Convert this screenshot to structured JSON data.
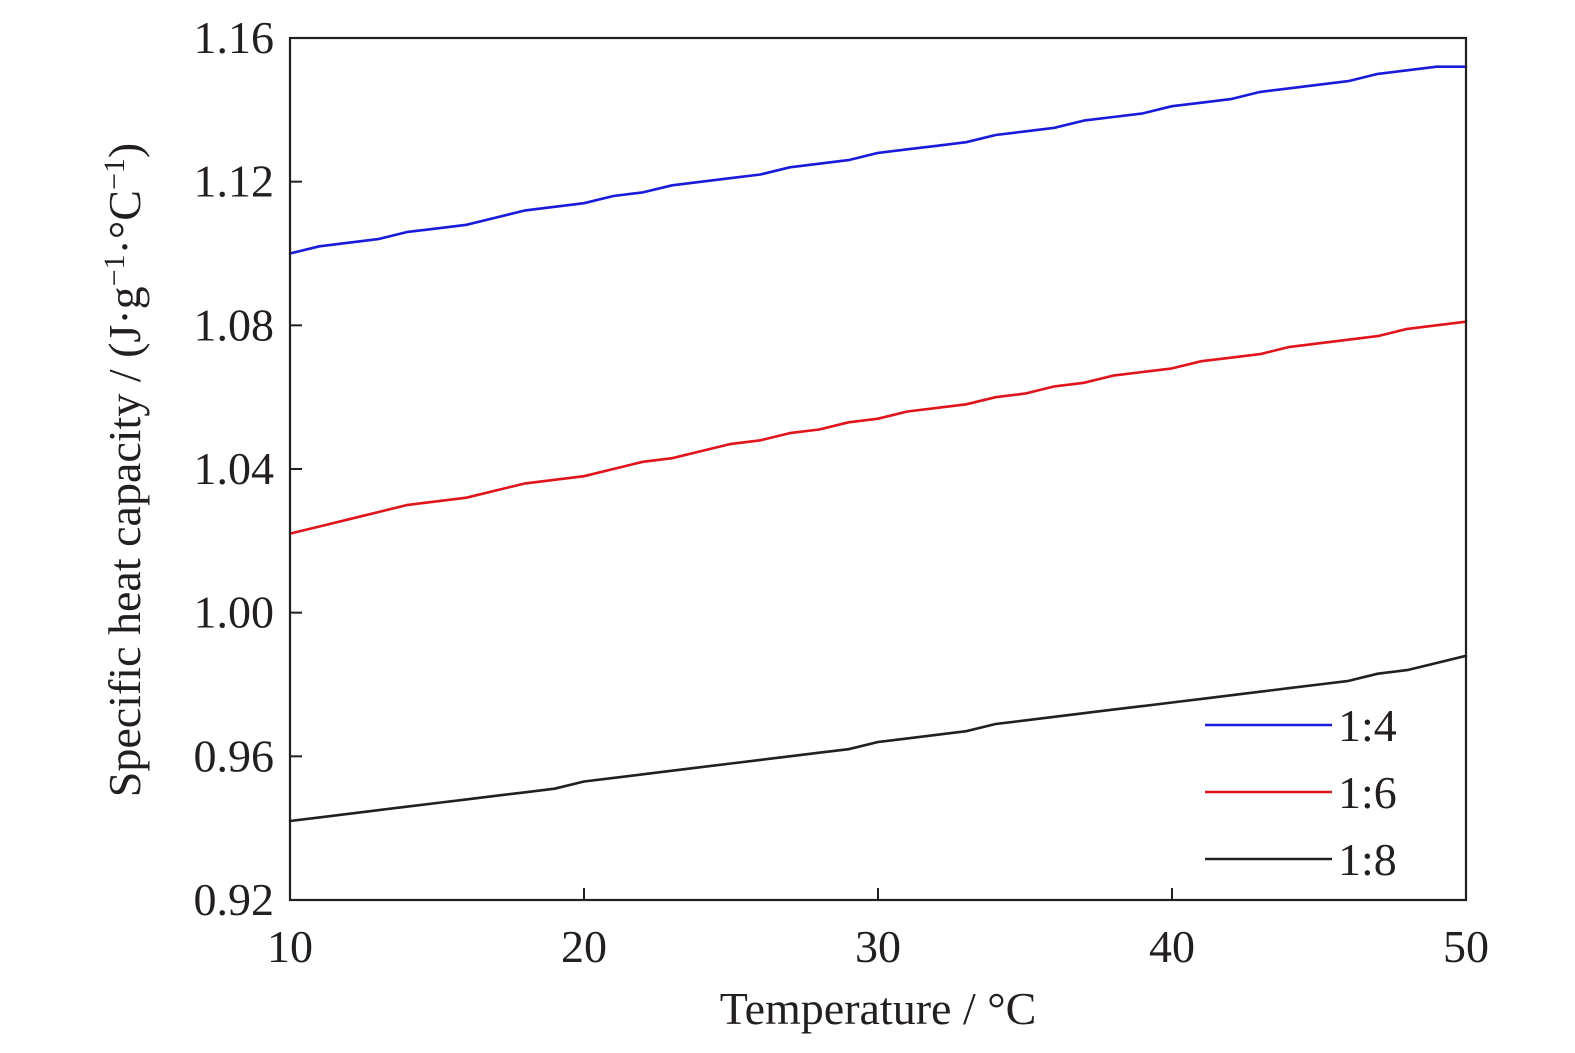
{
  "chart_data": {
    "type": "line",
    "title": "",
    "xlabel": "Temperature / °C",
    "ylabel": {
      "main": "Specific heat capacity / (J·g",
      "sup1": "−1",
      "mid": "·°C",
      "sup2": "−1",
      "end": ")"
    },
    "xlim": [
      10,
      50
    ],
    "ylim": [
      0.92,
      1.16
    ],
    "x_ticks": [
      10,
      20,
      30,
      40,
      50
    ],
    "x_tick_labels": [
      "10",
      "20",
      "30",
      "40",
      "50"
    ],
    "y_ticks": [
      0.92,
      0.96,
      1.0,
      1.04,
      1.08,
      1.12,
      1.16
    ],
    "y_tick_labels": [
      "0.92",
      "0.96",
      "1.00",
      "1.04",
      "1.08",
      "1.12",
      "1.16"
    ],
    "grid": false,
    "legend_position": "bottom-right",
    "x": [
      10,
      11,
      12,
      13,
      14,
      15,
      16,
      17,
      18,
      19,
      20,
      21,
      22,
      23,
      24,
      25,
      26,
      27,
      28,
      29,
      30,
      31,
      32,
      33,
      34,
      35,
      36,
      37,
      38,
      39,
      40,
      41,
      42,
      43,
      44,
      45,
      46,
      47,
      48,
      49,
      50
    ],
    "series": [
      {
        "name": "1:4",
        "color": "#1a1adb",
        "values": [
          1.1,
          1.102,
          1.103,
          1.104,
          1.106,
          1.107,
          1.108,
          1.11,
          1.112,
          1.113,
          1.114,
          1.116,
          1.117,
          1.119,
          1.12,
          1.121,
          1.122,
          1.124,
          1.125,
          1.126,
          1.128,
          1.129,
          1.13,
          1.131,
          1.133,
          1.134,
          1.135,
          1.137,
          1.138,
          1.139,
          1.141,
          1.142,
          1.143,
          1.145,
          1.146,
          1.147,
          1.148,
          1.15,
          1.151,
          1.152,
          1.152
        ]
      },
      {
        "name": "1:6",
        "color": "#e0141b",
        "values": [
          1.022,
          1.024,
          1.026,
          1.028,
          1.03,
          1.031,
          1.032,
          1.034,
          1.036,
          1.037,
          1.038,
          1.04,
          1.042,
          1.043,
          1.045,
          1.047,
          1.048,
          1.05,
          1.051,
          1.053,
          1.054,
          1.056,
          1.057,
          1.058,
          1.06,
          1.061,
          1.063,
          1.064,
          1.066,
          1.067,
          1.068,
          1.07,
          1.071,
          1.072,
          1.074,
          1.075,
          1.076,
          1.077,
          1.079,
          1.08,
          1.081
        ]
      },
      {
        "name": "1:8",
        "color": "#231f20",
        "values": [
          0.942,
          0.943,
          0.944,
          0.945,
          0.946,
          0.947,
          0.948,
          0.949,
          0.95,
          0.951,
          0.953,
          0.954,
          0.955,
          0.956,
          0.957,
          0.958,
          0.959,
          0.96,
          0.961,
          0.962,
          0.964,
          0.965,
          0.966,
          0.967,
          0.969,
          0.97,
          0.971,
          0.972,
          0.973,
          0.974,
          0.975,
          0.976,
          0.977,
          0.978,
          0.979,
          0.98,
          0.981,
          0.983,
          0.984,
          0.986,
          0.988
        ]
      }
    ]
  }
}
